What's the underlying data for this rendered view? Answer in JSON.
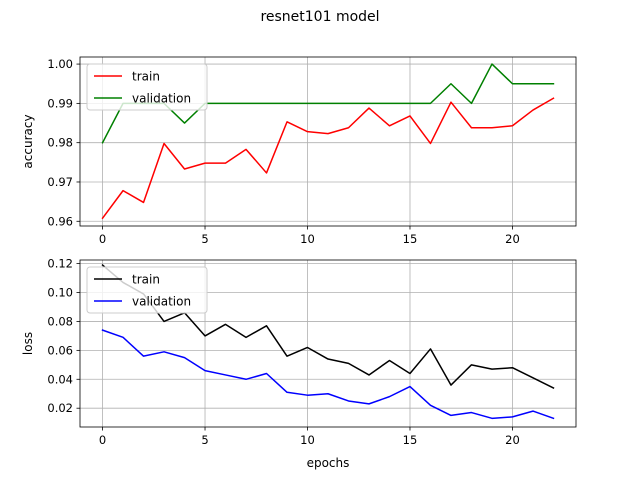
{
  "title": "resnet101 model",
  "chart_data": [
    {
      "type": "line",
      "xlabel": "",
      "ylabel": "accuracy",
      "xlim": [
        -1.1,
        23.1
      ],
      "ylim": [
        0.9588,
        1.0018
      ],
      "xticks": [
        0,
        5,
        10,
        15,
        20
      ],
      "yticks": [
        0.96,
        0.97,
        0.98,
        0.99,
        1.0
      ],
      "ytick_labels": [
        "0.96",
        "0.97",
        "0.98",
        "0.99",
        "1.00"
      ],
      "grid": true,
      "legend": "upper left",
      "x": [
        0,
        1,
        2,
        3,
        4,
        5,
        6,
        7,
        8,
        9,
        10,
        11,
        12,
        13,
        14,
        15,
        16,
        17,
        18,
        19,
        20,
        21,
        22
      ],
      "series": [
        {
          "name": "train",
          "color": "#ff0000",
          "values": [
            0.9608,
            0.9678,
            0.9648,
            0.9798,
            0.9733,
            0.9748,
            0.9748,
            0.9783,
            0.9723,
            0.9853,
            0.9828,
            0.9823,
            0.9838,
            0.9888,
            0.9843,
            0.9868,
            0.9798,
            0.9903,
            0.9838,
            0.9838,
            0.9843,
            0.9883,
            0.9913
          ]
        },
        {
          "name": "validation",
          "color": "#008000",
          "values": [
            0.98,
            0.99,
            0.99,
            0.99,
            0.985,
            0.99,
            0.99,
            0.99,
            0.99,
            0.99,
            0.99,
            0.99,
            0.99,
            0.99,
            0.99,
            0.99,
            0.99,
            0.995,
            0.99,
            1.0,
            0.995,
            0.995,
            0.995
          ]
        }
      ]
    },
    {
      "type": "line",
      "xlabel": "epochs",
      "ylabel": "loss",
      "xlim": [
        -1.1,
        23.1
      ],
      "ylim": [
        0.007,
        0.1225
      ],
      "xticks": [
        0,
        5,
        10,
        15,
        20
      ],
      "yticks": [
        0.02,
        0.04,
        0.06,
        0.08,
        0.1,
        0.12
      ],
      "ytick_labels": [
        "0.02",
        "0.04",
        "0.06",
        "0.08",
        "0.10",
        "0.12"
      ],
      "grid": true,
      "legend": "upper left",
      "x": [
        0,
        1,
        2,
        3,
        4,
        5,
        6,
        7,
        8,
        9,
        10,
        11,
        12,
        13,
        14,
        15,
        16,
        17,
        18,
        19,
        20,
        21,
        22
      ],
      "series": [
        {
          "name": "train",
          "color": "#000000",
          "values": [
            0.119,
            0.107,
            0.099,
            0.08,
            0.086,
            0.07,
            0.078,
            0.069,
            0.077,
            0.056,
            0.062,
            0.054,
            0.051,
            0.043,
            0.053,
            0.044,
            0.061,
            0.036,
            0.05,
            0.047,
            0.048,
            0.041,
            0.034
          ]
        },
        {
          "name": "validation",
          "color": "#0000ff",
          "values": [
            0.074,
            0.069,
            0.056,
            0.059,
            0.055,
            0.046,
            0.043,
            0.04,
            0.044,
            0.031,
            0.029,
            0.03,
            0.025,
            0.023,
            0.028,
            0.035,
            0.022,
            0.015,
            0.017,
            0.013,
            0.014,
            0.018,
            0.013
          ]
        }
      ]
    }
  ]
}
